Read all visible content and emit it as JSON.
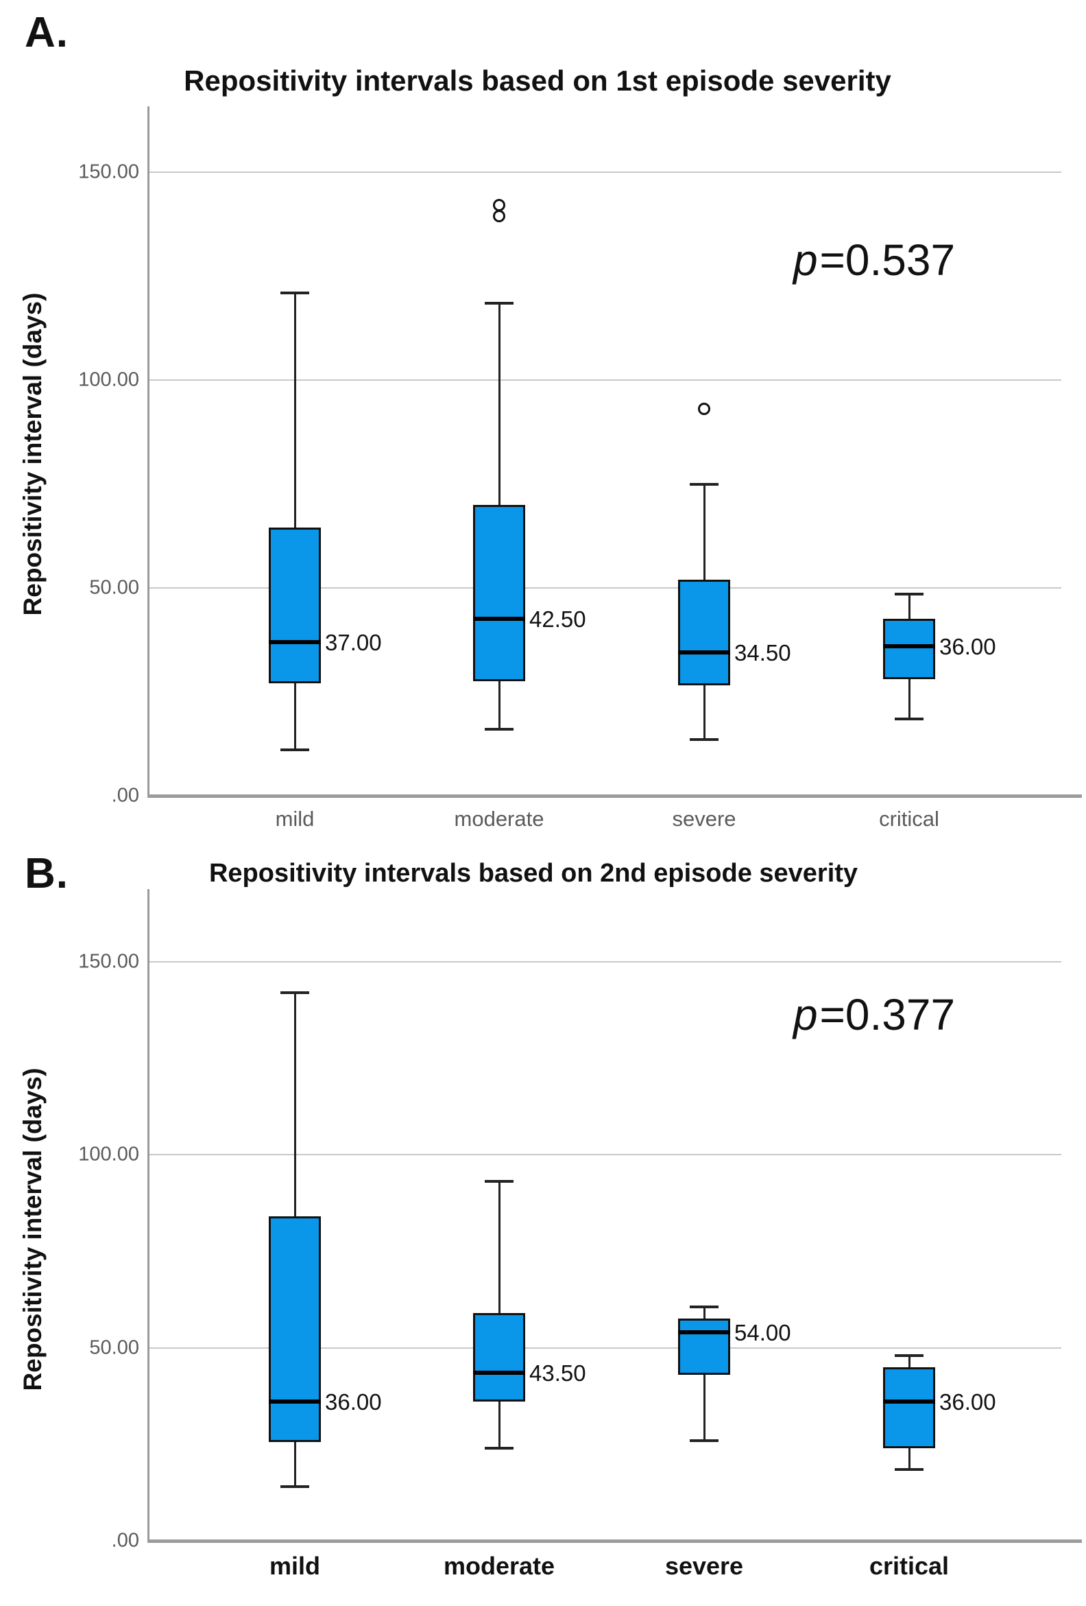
{
  "figure": {
    "background": "#ffffff",
    "box_fill_color": "#0b97e9",
    "gridline_color": "#c9c9c9",
    "axis_color": "#9b9b9b"
  },
  "chart_data": [
    {
      "type": "boxplot",
      "panel_label": "A.",
      "title": "Repositivity intervals based on 1st episode severity",
      "ylabel": "Repositivity interval (days)",
      "xlabel": "",
      "p_symbol": "p",
      "p_rest": "=0.537",
      "ylim": [
        0,
        165
      ],
      "grid": true,
      "yticks": [
        {
          "value": 150,
          "label": "150.00"
        },
        {
          "value": 100,
          "label": "100.00"
        },
        {
          "value": 50,
          "label": "50.00"
        },
        {
          "value": 0,
          "label": ".00"
        }
      ],
      "categories": [
        "mild",
        "moderate",
        "severe",
        "critical"
      ],
      "boxes": [
        {
          "category": "mild",
          "whisker_low": 11,
          "q1": 27,
          "median": 37,
          "q3": 64.5,
          "whisker_high": 121,
          "median_label": "37.00",
          "outliers": []
        },
        {
          "category": "moderate",
          "whisker_low": 16,
          "q1": 27.5,
          "median": 42.5,
          "q3": 70,
          "whisker_high": 118.5,
          "median_label": "42.50",
          "outliers": [
            142,
            139.5
          ]
        },
        {
          "category": "severe",
          "whisker_low": 13.5,
          "q1": 26.5,
          "median": 34.5,
          "q3": 52,
          "whisker_high": 75,
          "median_label": "34.50",
          "outliers": [
            93
          ]
        },
        {
          "category": "critical",
          "whisker_low": 18.5,
          "q1": 28,
          "median": 36,
          "q3": 42.5,
          "whisker_high": 48.5,
          "median_label": "36.00",
          "outliers": []
        }
      ]
    },
    {
      "type": "boxplot",
      "panel_label": "B.",
      "title": "Repositivity intervals based on 2nd episode severity",
      "ylabel": "Repositivity interval (days)",
      "xlabel": "",
      "p_symbol": "p",
      "p_rest": "=0.377",
      "ylim": [
        0,
        165
      ],
      "grid": true,
      "yticks": [
        {
          "value": 150,
          "label": "150.00"
        },
        {
          "value": 100,
          "label": "100.00"
        },
        {
          "value": 50,
          "label": "50.00"
        },
        {
          "value": 0,
          "label": ".00"
        }
      ],
      "categories": [
        "mild",
        "moderate",
        "severe",
        "critical"
      ],
      "boxes": [
        {
          "category": "mild",
          "whisker_low": 14,
          "q1": 25.5,
          "median": 36,
          "q3": 84,
          "whisker_high": 142,
          "median_label": "36.00",
          "outliers": []
        },
        {
          "category": "moderate",
          "whisker_low": 24,
          "q1": 36,
          "median": 43.5,
          "q3": 59,
          "whisker_high": 93,
          "median_label": "43.50",
          "outliers": []
        },
        {
          "category": "severe",
          "whisker_low": 26,
          "q1": 43,
          "median": 54,
          "q3": 57.5,
          "whisker_high": 60.5,
          "median_label": "54.00",
          "outliers": []
        },
        {
          "category": "critical",
          "whisker_low": 18.5,
          "q1": 24,
          "median": 36,
          "q3": 45,
          "whisker_high": 48,
          "median_label": "36.00",
          "outliers": []
        }
      ]
    }
  ]
}
